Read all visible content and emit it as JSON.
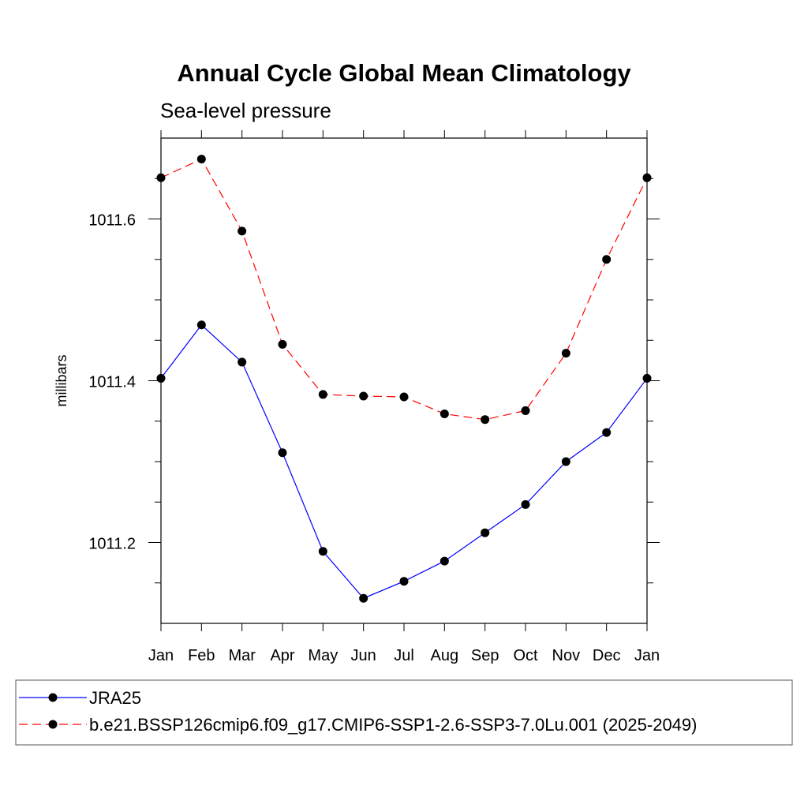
{
  "chart_data": {
    "type": "line",
    "title": "Annual Cycle Global Mean Climatology",
    "subtitle": "Sea-level pressure",
    "xlabel": "",
    "ylabel": "millibars",
    "categories": [
      "Jan",
      "Feb",
      "Mar",
      "Apr",
      "May",
      "Jun",
      "Jul",
      "Aug",
      "Sep",
      "Oct",
      "Nov",
      "Dec",
      "Jan"
    ],
    "ylim": [
      1011.1,
      1011.7
    ],
    "yticks_major": [
      "1011.2",
      "1011.4",
      "1011.6"
    ],
    "grid": false,
    "legend_position": "bottom",
    "series": [
      {
        "name": "JRA25",
        "color": "#0000ff",
        "line_style": "solid",
        "marker": "filled-circle",
        "values": [
          1011.403,
          1011.469,
          1011.423,
          1011.311,
          1011.189,
          1011.131,
          1011.152,
          1011.177,
          1011.212,
          1011.247,
          1011.3,
          1011.336,
          1011.403
        ]
      },
      {
        "name": "b.e21.BSSP126cmip6.f09_g17.CMIP6-SSP1-2.6-SSP3-7.0Lu.001 (2025-2049)",
        "color": "#ff0000",
        "line_style": "dashed",
        "marker": "filled-circle",
        "values": [
          1011.651,
          1011.674,
          1011.585,
          1011.445,
          1011.383,
          1011.381,
          1011.38,
          1011.359,
          1011.352,
          1011.363,
          1011.434,
          1011.55,
          1011.651
        ]
      }
    ]
  }
}
